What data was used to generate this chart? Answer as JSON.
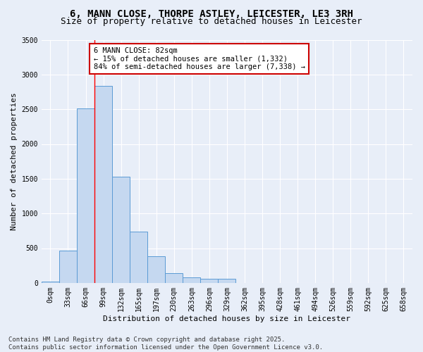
{
  "title_line1": "6, MANN CLOSE, THORPE ASTLEY, LEICESTER, LE3 3RH",
  "title_line2": "Size of property relative to detached houses in Leicester",
  "xlabel": "Distribution of detached houses by size in Leicester",
  "ylabel": "Number of detached properties",
  "bar_color": "#c5d8f0",
  "bar_edge_color": "#5b9bd5",
  "bg_color": "#e8eef8",
  "grid_color": "#d0d8e8",
  "bin_labels": [
    "0sqm",
    "33sqm",
    "66sqm",
    "99sqm",
    "132sqm",
    "165sqm",
    "197sqm",
    "230sqm",
    "263sqm",
    "296sqm",
    "329sqm",
    "362sqm",
    "395sqm",
    "428sqm",
    "461sqm",
    "494sqm",
    "526sqm",
    "559sqm",
    "592sqm",
    "625sqm",
    "658sqm"
  ],
  "bar_values": [
    15,
    465,
    2510,
    2840,
    1530,
    740,
    380,
    140,
    75,
    55,
    55,
    0,
    0,
    0,
    0,
    0,
    0,
    0,
    0,
    0,
    0
  ],
  "ylim": [
    0,
    3500
  ],
  "yticks": [
    0,
    500,
    1000,
    1500,
    2000,
    2500,
    3000,
    3500
  ],
  "red_line_x": 2.5,
  "annotation_text": "6 MANN CLOSE: 82sqm\n← 15% of detached houses are smaller (1,332)\n84% of semi-detached houses are larger (7,338) →",
  "annotation_box_color": "#ffffff",
  "annotation_border_color": "#cc0000",
  "footer_text": "Contains HM Land Registry data © Crown copyright and database right 2025.\nContains public sector information licensed under the Open Government Licence v3.0.",
  "title_fontsize": 10,
  "subtitle_fontsize": 9,
  "axis_label_fontsize": 8,
  "tick_fontsize": 7,
  "annotation_fontsize": 7.5,
  "footer_fontsize": 6.5
}
